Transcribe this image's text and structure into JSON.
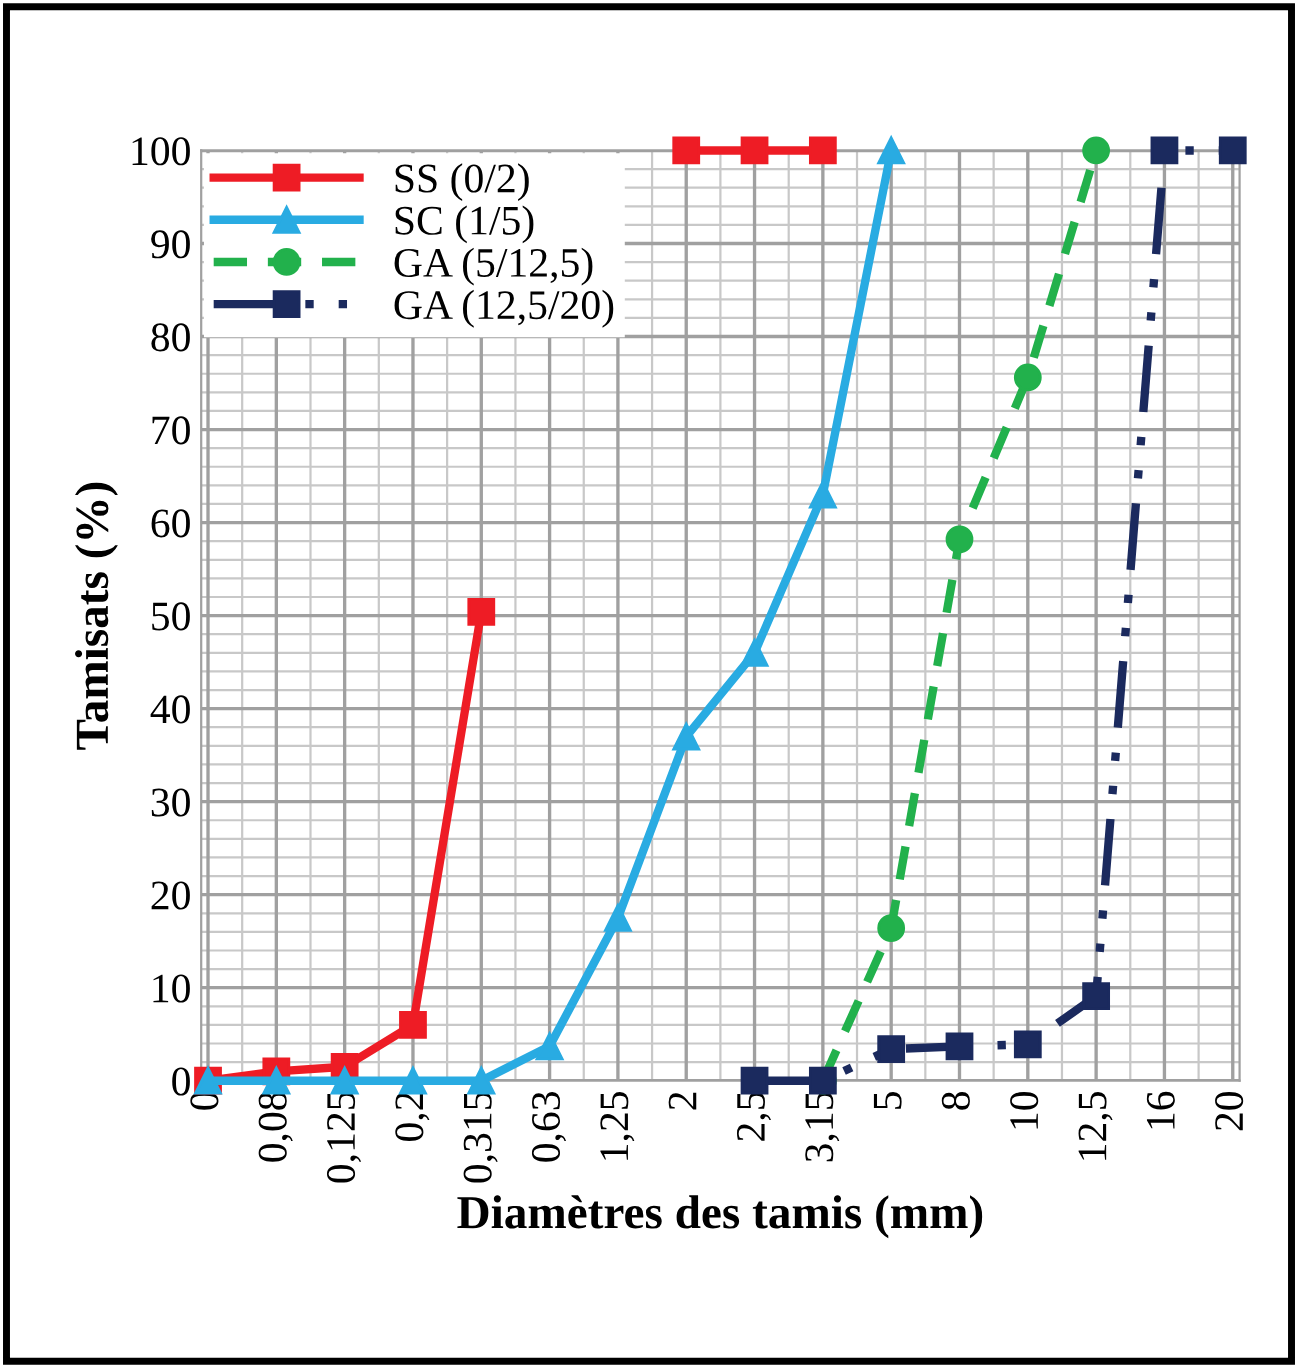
{
  "chart_data": {
    "type": "line",
    "xlabel": "Diamètres des tamis (mm)",
    "ylabel": "Tamisats (%)",
    "categories": [
      "0",
      "0,08",
      "0,125",
      "0,2",
      "0,315",
      "0,63",
      "1,25",
      "2",
      "2,5",
      "3,15",
      "5",
      "8",
      "10",
      "12,5",
      "16",
      "20"
    ],
    "ylim": [
      0,
      100
    ],
    "yticks": [
      0,
      10,
      20,
      30,
      40,
      50,
      60,
      70,
      80,
      90,
      100
    ],
    "grid": true,
    "legend": "top left",
    "series": [
      {
        "name": "SS (0/2)",
        "color": "#ee1c25",
        "marker": "square",
        "line_style": "solid",
        "values": [
          0,
          1,
          1.5,
          6,
          50.4,
          null,
          null,
          100,
          100,
          100,
          null,
          null,
          null,
          null,
          null,
          null
        ]
      },
      {
        "name": "SC (1/5)",
        "color": "#29abe2",
        "marker": "triangle",
        "line_style": "solid",
        "values": [
          0,
          0,
          0,
          0,
          0,
          3.7,
          17.5,
          37,
          46,
          63,
          100,
          null,
          null,
          null,
          null,
          null
        ]
      },
      {
        "name": "GA (5/12,5)",
        "color": "#22b14c",
        "marker": "circle",
        "line_style": "dashed",
        "values": [
          null,
          null,
          null,
          null,
          null,
          null,
          null,
          null,
          null,
          0,
          16.4,
          58.2,
          75.6,
          100,
          null,
          null
        ]
      },
      {
        "name": "GA (12,5/20)",
        "color": "#1b2a5e",
        "marker": "square",
        "line_style": "dashdot",
        "values": [
          null,
          null,
          null,
          null,
          null,
          null,
          null,
          null,
          0,
          0,
          3.4,
          3.7,
          3.9,
          9.1,
          100,
          100
        ]
      }
    ]
  }
}
